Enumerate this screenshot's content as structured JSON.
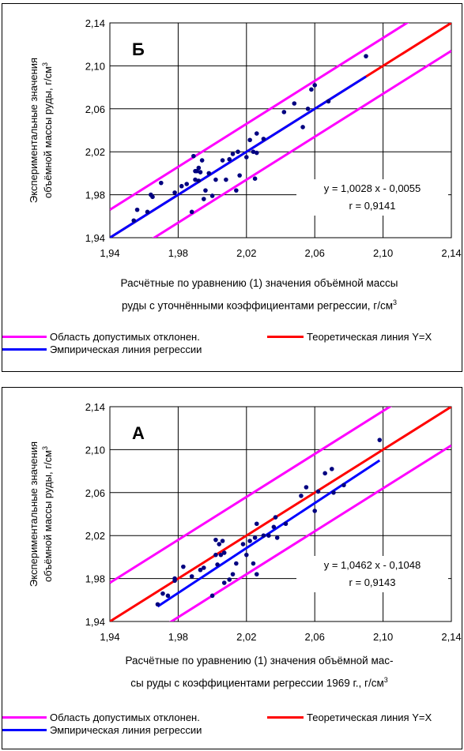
{
  "colors": {
    "allowed": "#ff00ff",
    "theory": "#ff0000",
    "empirical": "#0000ff",
    "points": "#000080"
  },
  "legend": {
    "allowed": "Область допустимых отклонен.",
    "theory": "Теоретическая линия Y=X",
    "empirical": "Эмпирическая линия регрессии"
  },
  "panels": [
    {
      "label": "Б",
      "ylabel_line1": "Экспериментальные значения",
      "ylabel_line2": "объёмной массы руды, г/см",
      "ylabel_sup": "3",
      "xlabel_line1": "Расчётные по уравнению (1) значения объёмной массы",
      "xlabel_line2": "руды с уточнёнными коэффициентами регрессии, г/см",
      "xlabel_sup": "3",
      "equation": "y = 1,0028 x - 0,0055",
      "r_text": "r = 0,9141"
    },
    {
      "label": "А",
      "ylabel_line1": "Экспериментальные значения",
      "ylabel_line2": "объёмной массы руды, г/см",
      "ylabel_sup": "3",
      "xlabel_line1": "Расчётные по уравнению (1) значения объёмной мас-",
      "xlabel_line2": "сы руды с коэффициентами регрессии 1969 г., г/см",
      "xlabel_sup": "3",
      "equation": "y = 1,0462 x - 0,1048",
      "r_text": "r = 0,9143"
    }
  ],
  "chart_data": [
    {
      "type": "scatter",
      "title": "Б",
      "xlim": [
        1.94,
        2.14
      ],
      "ylim": [
        1.94,
        2.14
      ],
      "x_ticks": [
        "1,94",
        "1,98",
        "2,02",
        "2,06",
        "2,10",
        "2,14"
      ],
      "y_ticks": [
        "1,94",
        "1,98",
        "2,02",
        "2,06",
        "2,10",
        "2,14"
      ],
      "grid": true,
      "series": [
        {
          "name": "Область допустимых отклонен.",
          "kind": "line",
          "x": [
            1.94,
            2.14
          ],
          "y": [
            1.966,
            2.166
          ]
        },
        {
          "name": "Область допустимых отклонен.",
          "kind": "line",
          "x": [
            1.94,
            2.14
          ],
          "y": [
            1.914,
            2.114
          ]
        },
        {
          "name": "Теоретическая линия Y=X",
          "kind": "line",
          "x": [
            1.94,
            2.14
          ],
          "y": [
            1.94,
            2.14
          ]
        },
        {
          "name": "Эмпирическая линия регрессии",
          "kind": "line",
          "x": [
            1.94,
            2.09
          ],
          "y": [
            1.94,
            2.09
          ]
        },
        {
          "kind": "points",
          "x": [
            1.954,
            1.956,
            1.962,
            1.964,
            1.965,
            1.97,
            1.978,
            1.982,
            1.985,
            1.988,
            1.989,
            1.99,
            1.99,
            1.991,
            1.992,
            1.992,
            1.993,
            1.994,
            1.995,
            1.996,
            1.998,
            2.0,
            2.002,
            2.006,
            2.008,
            2.01,
            2.012,
            2.014,
            2.015,
            2.016,
            2.02,
            2.022,
            2.024,
            2.025,
            2.026,
            2.026,
            2.03,
            2.042,
            2.048,
            2.053,
            2.056,
            2.058,
            2.06,
            2.068,
            2.09
          ],
          "y": [
            1.956,
            1.966,
            1.964,
            1.98,
            1.978,
            1.991,
            1.982,
            1.988,
            1.99,
            1.964,
            2.016,
            2.002,
            1.994,
            2.002,
            2.005,
            1.993,
            2.001,
            2.012,
            1.976,
            1.984,
            2.0,
            1.979,
            1.994,
            2.012,
            1.994,
            2.013,
            2.018,
            1.984,
            2.02,
            1.998,
            2.015,
            2.031,
            2.02,
            1.995,
            2.019,
            2.037,
            2.032,
            2.057,
            2.065,
            2.043,
            2.06,
            2.078,
            2.082,
            2.067,
            2.109
          ]
        }
      ]
    },
    {
      "type": "scatter",
      "title": "А",
      "xlim": [
        1.94,
        2.14
      ],
      "ylim": [
        1.94,
        2.14
      ],
      "x_ticks": [
        "1,94",
        "1,98",
        "2,02",
        "2,06",
        "2,10",
        "2,14"
      ],
      "y_ticks": [
        "1,94",
        "1,98",
        "2,02",
        "2,06",
        "2,10",
        "2,14"
      ],
      "grid": true,
      "series": [
        {
          "name": "Область допустимых отклонен.",
          "kind": "line",
          "x": [
            1.94,
            2.14
          ],
          "y": [
            1.976,
            2.176
          ]
        },
        {
          "name": "Область допустимых отклонен.",
          "kind": "line",
          "x": [
            1.94,
            2.14
          ],
          "y": [
            1.904,
            2.104
          ]
        },
        {
          "name": "Теоретическая линия Y=X",
          "kind": "line",
          "x": [
            1.94,
            2.14
          ],
          "y": [
            1.94,
            2.14
          ]
        },
        {
          "name": "Эмпирическая линия регрессии",
          "kind": "line",
          "x": [
            1.968,
            2.098
          ],
          "y": [
            1.954,
            2.09
          ]
        },
        {
          "kind": "points",
          "x": [
            1.968,
            1.971,
            1.974,
            1.978,
            1.978,
            1.983,
            1.988,
            1.993,
            1.995,
            2.0,
            2.002,
            2.002,
            2.003,
            2.004,
            2.005,
            2.006,
            2.007,
            2.007,
            2.01,
            2.012,
            2.014,
            2.018,
            2.02,
            2.022,
            2.024,
            2.025,
            2.026,
            2.026,
            2.03,
            2.033,
            2.036,
            2.037,
            2.038,
            2.043,
            2.052,
            2.055,
            2.06,
            2.062,
            2.066,
            2.07,
            2.071,
            2.077,
            2.098
          ],
          "y": [
            1.956,
            1.966,
            1.964,
            1.98,
            1.978,
            1.991,
            1.982,
            1.988,
            1.99,
            1.964,
            2.016,
            2.002,
            1.993,
            2.012,
            2.002,
            2.015,
            1.976,
            2.004,
            1.979,
            1.984,
            1.994,
            2.012,
            2.002,
            2.015,
            1.994,
            2.018,
            1.984,
            2.031,
            2.02,
            2.02,
            2.028,
            2.037,
            2.018,
            2.031,
            2.057,
            2.065,
            2.043,
            2.061,
            2.078,
            2.082,
            2.06,
            2.067,
            2.109
          ]
        }
      ]
    }
  ]
}
